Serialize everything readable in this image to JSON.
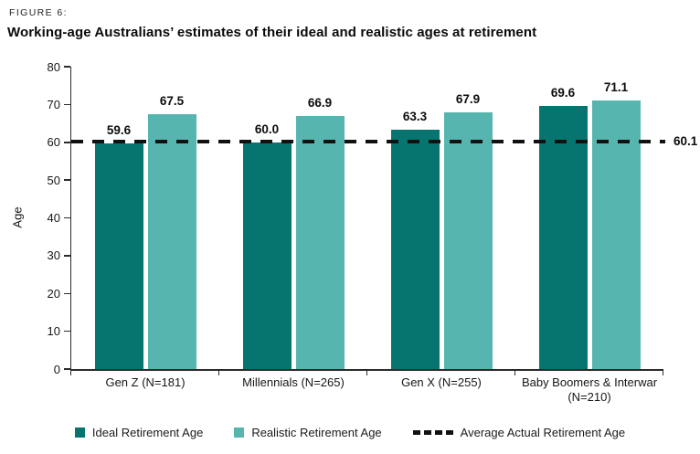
{
  "figure": {
    "label": "FIGURE 6:",
    "title": "Working-age Australians’ estimates of their ideal and realistic ages at retirement"
  },
  "chart_data": {
    "type": "bar",
    "categories": [
      "Gen Z (N=181)",
      "Millennials (N=265)",
      "Gen X (N=255)",
      "Baby Boomers & Interwar (N=210)"
    ],
    "series": [
      {
        "name": "Ideal Retirement Age",
        "color": "#06756F",
        "values": [
          59.6,
          60.0,
          63.3,
          69.6
        ]
      },
      {
        "name": "Realistic Retirement Age",
        "color": "#57B5AF",
        "values": [
          67.5,
          66.9,
          67.9,
          71.1
        ]
      }
    ],
    "reference_line": {
      "name": "Average Actual Retirement Age",
      "value": 60.1,
      "label": "60.1",
      "color": "#111111",
      "style": "dashed"
    },
    "title": "Working-age Australians’ estimates of their ideal and realistic ages at retirement",
    "xlabel": "",
    "ylabel": "Age",
    "ylim": [
      0,
      80
    ],
    "yticks": [
      0,
      10,
      20,
      30,
      40,
      50,
      60,
      70,
      80
    ],
    "grid": false,
    "legend_position": "bottom",
    "value_label_decimals": 1
  },
  "legend": {
    "items": [
      {
        "label": "Ideal Retirement Age",
        "marker": "square",
        "color": "#06756F"
      },
      {
        "label": "Realistic Retirement Age",
        "marker": "square",
        "color": "#57B5AF"
      },
      {
        "label": "Average Actual Retirement Age",
        "marker": "dashed-line",
        "color": "#111111"
      }
    ]
  }
}
